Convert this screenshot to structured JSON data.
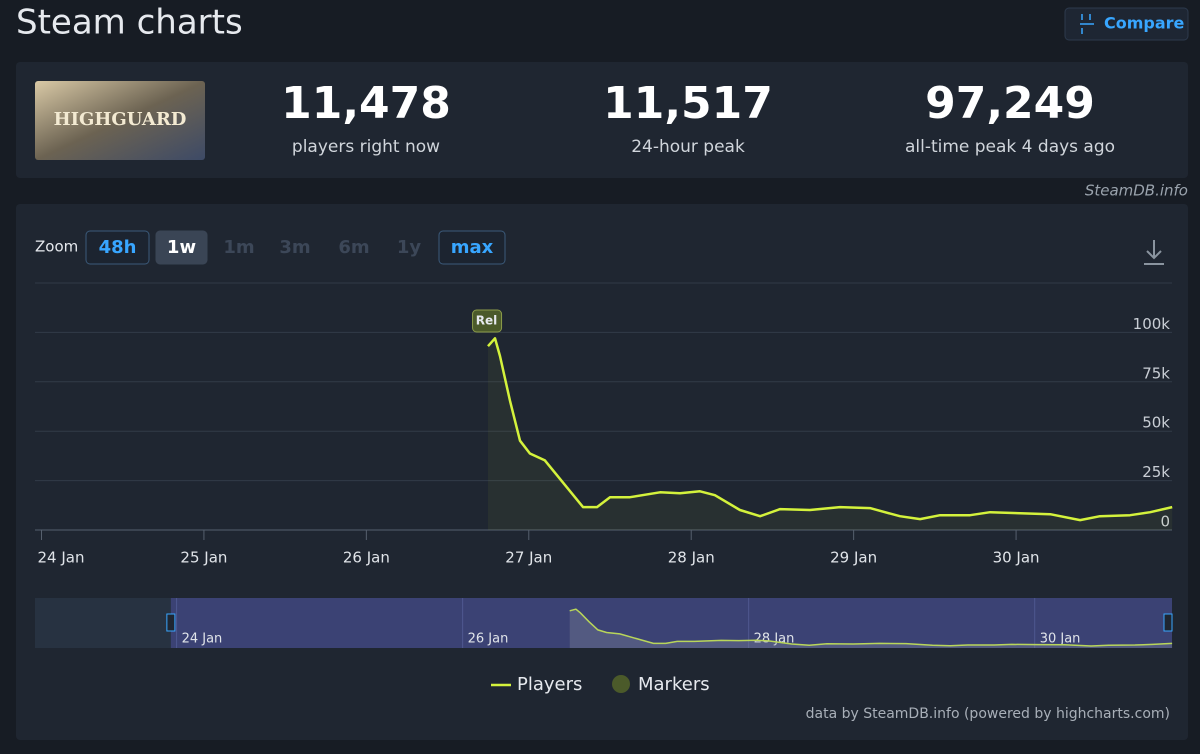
{
  "header": {
    "title": "Steam charts",
    "compare": "Compare"
  },
  "thumbnail_text": "HIGHGUARD",
  "stats": [
    {
      "value": "11,478",
      "label": "players right now"
    },
    {
      "value": "11,517",
      "label": "24-hour peak"
    },
    {
      "value": "97,249",
      "label": "all-time peak 4 days ago"
    }
  ],
  "source": "SteamDB.info",
  "zoom": {
    "label": "Zoom",
    "buttons": [
      "48h",
      "1w",
      "1m",
      "3m",
      "6m",
      "1y",
      "max"
    ],
    "active": "1w",
    "enabled": [
      "48h",
      "1w",
      "max"
    ]
  },
  "chart_data": {
    "type": "line",
    "x": [
      2.749,
      2.792,
      2.823,
      2.884,
      2.946,
      3.007,
      3.099,
      3.334,
      3.42,
      3.5,
      3.623,
      3.808,
      3.931,
      4.054,
      4.146,
      4.3,
      4.424,
      4.547,
      4.731,
      4.916,
      5.101,
      5.285,
      5.409,
      5.532,
      5.717,
      5.84,
      6.025,
      6.21,
      6.394,
      6.517,
      6.702,
      6.826,
      6.961
    ],
    "series": [
      {
        "name": "Players",
        "color": "#d4f23c",
        "values": [
          93000,
          97000,
          88000,
          65600,
          45200,
          38700,
          35200,
          11600,
          11600,
          16600,
          16600,
          19100,
          18600,
          19600,
          17600,
          10100,
          7000,
          10600,
          10100,
          11600,
          11100,
          7000,
          5500,
          7500,
          7500,
          9000,
          8500,
          8000,
          5000,
          7000,
          7500,
          9000,
          11600
        ]
      }
    ],
    "markers": {
      "name": "Markers",
      "color": "#4b5a2a",
      "items": [
        {
          "x": 2.74,
          "label": "Rel"
        }
      ]
    },
    "xlim": [
      -0.04,
      6.96
    ],
    "xticks": [
      {
        "value": 0,
        "label": "24 Jan"
      },
      {
        "value": 1,
        "label": "25 Jan"
      },
      {
        "value": 2,
        "label": "26 Jan"
      },
      {
        "value": 3,
        "label": "27 Jan"
      },
      {
        "value": 4,
        "label": "28 Jan"
      },
      {
        "value": 5,
        "label": "29 Jan"
      },
      {
        "value": 6,
        "label": "30 Jan"
      }
    ],
    "ylim": [
      0,
      125000
    ],
    "yticks": [
      {
        "value": 0,
        "label": "0"
      },
      {
        "value": 25000,
        "label": "25k"
      },
      {
        "value": 50000,
        "label": "50k"
      },
      {
        "value": 75000,
        "label": "75k"
      },
      {
        "value": 100000,
        "label": "100k"
      }
    ],
    "grid": true,
    "navigator": {
      "xlim": [
        -0.99,
        6.96
      ],
      "selection": [
        -0.04,
        6.96
      ],
      "xticks": [
        {
          "value": 0,
          "label": "24 Jan"
        },
        {
          "value": 2,
          "label": "26 Jan"
        },
        {
          "value": 4,
          "label": "28 Jan"
        },
        {
          "value": 6,
          "label": "30 Jan"
        }
      ]
    },
    "credits": "data by SteamDB.info (powered by highcharts.com)"
  }
}
